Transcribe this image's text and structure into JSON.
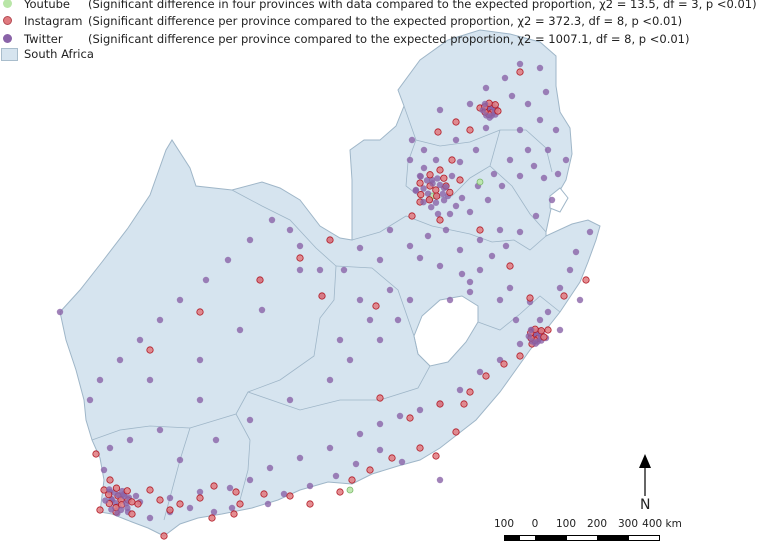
{
  "legend": {
    "youtube": {
      "label": "Youtube",
      "note": "(Significant difference in four provinces with data compared to the expected proportion, χ2 = 13.5, df = 3, p <0.01)",
      "color": "#b9e6a8"
    },
    "instagram": {
      "label": "Instagram",
      "note": "(Significant difference per province compared to the expected proportion, χ2 = 372.3, df = 8, p <0.01)",
      "color": "#e07a7f"
    },
    "twitter": {
      "label": "Twitter",
      "note": "(Significant difference per province compared to the expected proportion, χ2 = 1007.1, df = 8, p <0.01)",
      "color": "#8a63a8"
    },
    "country": {
      "label": "South Africa",
      "color": "#d6e4ef"
    }
  },
  "map": {
    "land_color": "#d6e4ef",
    "border_color": "#9fb6c8"
  },
  "north_arrow": {
    "label": "N"
  },
  "scale_bar": {
    "labels": [
      "100",
      "0",
      "100",
      "200",
      "300",
      "400 km"
    ]
  }
}
